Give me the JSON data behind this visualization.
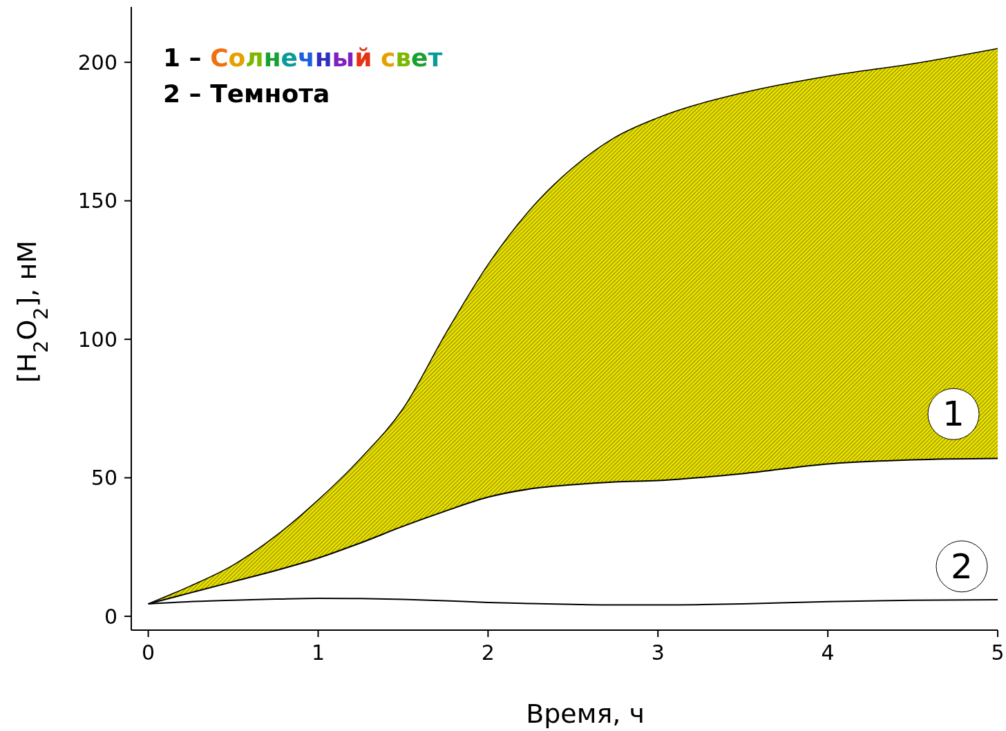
{
  "chart_data": {
    "type": "line",
    "xlabel": "Время, ч",
    "ylabel": "[H$_{2}$O$_{2}$], нМ",
    "x": [
      0,
      0.25,
      0.5,
      0.75,
      1,
      1.25,
      1.5,
      1.75,
      2,
      2.25,
      2.5,
      2.75,
      3,
      3.5,
      4,
      4.5,
      5
    ],
    "series": [
      {
        "name": "1",
        "color": "#000000",
        "lower": [
          4.5,
          8.5,
          12.5,
          16.5,
          21,
          26.5,
          32.5,
          38,
          43,
          46,
          47.5,
          48.5,
          49,
          51.5,
          55,
          56.5,
          57
        ],
        "upper": [
          4.5,
          11,
          18.5,
          29,
          42,
          57,
          75,
          102,
          127,
          147,
          162,
          173,
          180,
          189,
          195,
          199.5,
          205
        ],
        "values": [
          4.5,
          11,
          18.5,
          29,
          42,
          57,
          75,
          102,
          127,
          147,
          162,
          173,
          180,
          189,
          195,
          199.5,
          205
        ]
      },
      {
        "color": "#000000",
        "values": [
          4.5,
          8.5,
          12.5,
          16.5,
          21,
          26.5,
          32.5,
          38,
          43,
          46,
          47.5,
          48.5,
          49,
          51.5,
          55,
          56.5,
          57
        ]
      },
      {
        "name": "2",
        "color": "#000000",
        "values": [
          4.5,
          5.3,
          5.8,
          6.2,
          6.5,
          6.4,
          6.1,
          5.6,
          5,
          4.6,
          4.3,
          4.1,
          4.1,
          4.5,
          5.3,
          5.8,
          6
        ]
      }
    ],
    "xlim": [
      -0.1,
      5
    ],
    "xticks": [
      0,
      1,
      2,
      3,
      4,
      5
    ],
    "ylim": [
      -5,
      220
    ],
    "yticks": [
      0,
      50,
      100,
      150,
      200
    ],
    "grid": false,
    "legend": false,
    "annotations": [
      "1 – Солнечный свет",
      "2 – Темнота"
    ]
  }
}
